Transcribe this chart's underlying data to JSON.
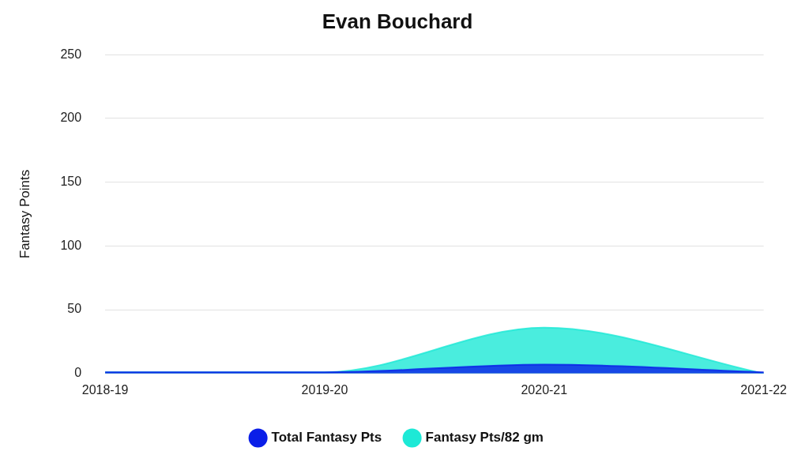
{
  "chart_data": {
    "type": "area",
    "title": "Evan Bouchard",
    "ylabel": "Fantasy Points",
    "categories": [
      "2018-19",
      "2019-20",
      "2020-21",
      "2021-22"
    ],
    "series": [
      {
        "name": "Total Fantasy Pts",
        "color": "#0a1ee8",
        "values": [
          1,
          1,
          7,
          1
        ]
      },
      {
        "name": "Fantasy Pts/82 gm",
        "color": "#1de9d6",
        "values": [
          1,
          1,
          36,
          0
        ]
      }
    ],
    "ylim": [
      0,
      250
    ],
    "yticks": [
      0,
      50,
      100,
      150,
      200,
      250
    ],
    "grid": "y",
    "legend": "bottom",
    "marker": "none"
  }
}
